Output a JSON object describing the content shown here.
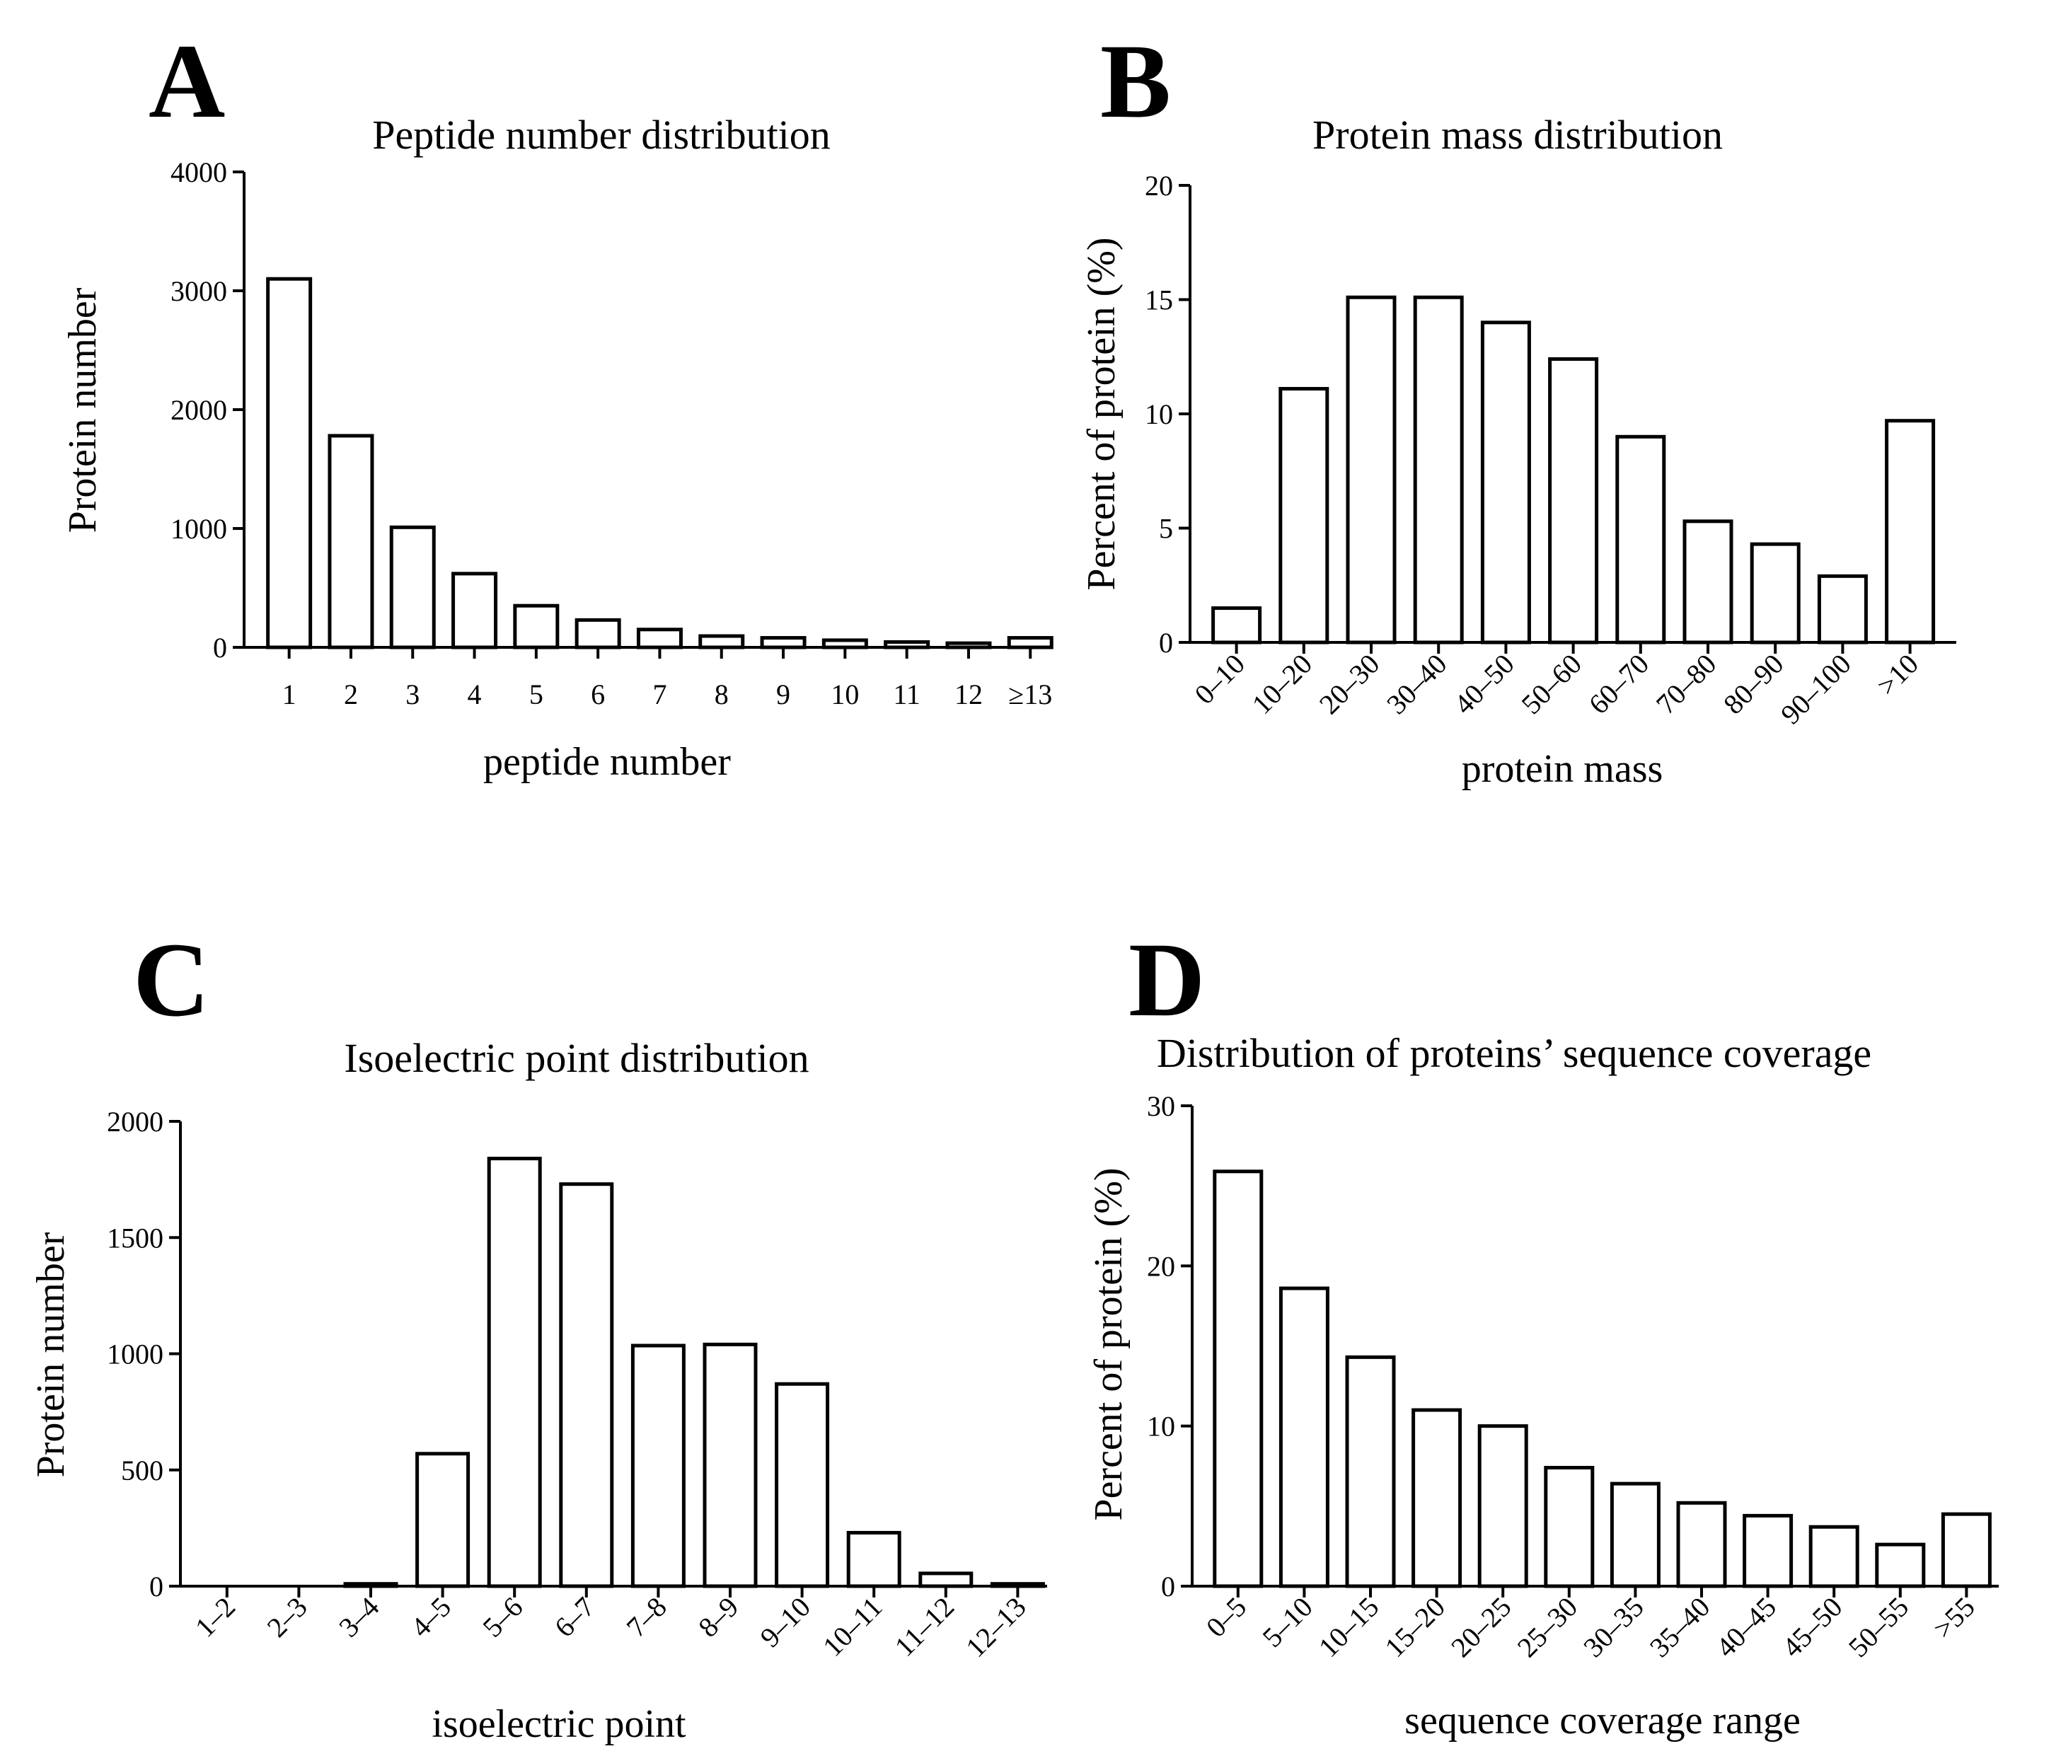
{
  "panels": [
    {
      "letter": "A",
      "chart_data": {
        "type": "bar",
        "title": "Peptide number distribution",
        "xlabel": "peptide number",
        "ylabel": "Protein number",
        "categories": [
          "1",
          "2",
          "3",
          "4",
          "5",
          "6",
          "7",
          "8",
          "9",
          "10",
          "11",
          "12",
          "≥13"
        ],
        "values": [
          3100,
          1780,
          1010,
          620,
          350,
          230,
          150,
          95,
          80,
          60,
          45,
          35,
          80
        ],
        "ylim": [
          0,
          4000
        ],
        "yticks": [
          0,
          1000,
          2000,
          3000,
          4000
        ],
        "rotate_labels": false,
        "grid": false
      }
    },
    {
      "letter": "B",
      "chart_data": {
        "type": "bar",
        "title": "Protein mass distribution",
        "xlabel": "protein mass",
        "ylabel": "Percent of protein (%)",
        "categories": [
          "0–10",
          "10–20",
          "20–30",
          "30–40",
          "40–50",
          "50–60",
          "60–70",
          "70–80",
          "80–90",
          "90–100",
          ">10"
        ],
        "values": [
          1.5,
          11.1,
          15.1,
          15.1,
          14.0,
          12.4,
          9.0,
          5.3,
          4.3,
          2.9,
          9.7
        ],
        "ylim": [
          0,
          20
        ],
        "yticks": [
          0,
          5,
          10,
          15,
          20
        ],
        "rotate_labels": true,
        "grid": false
      }
    },
    {
      "letter": "C",
      "chart_data": {
        "type": "bar",
        "title": "Isoelectric point distribution",
        "xlabel": "isoelectric point",
        "ylabel": "Protein number",
        "categories": [
          "1–2",
          "2–3",
          "3–4",
          "4–5",
          "5–6",
          "6–7",
          "7–8",
          "8–9",
          "9–10",
          "10–11",
          "11–12",
          "12–13"
        ],
        "values": [
          0,
          0,
          10,
          570,
          1840,
          1730,
          1035,
          1040,
          870,
          230,
          55,
          10
        ],
        "ylim": [
          0,
          2000
        ],
        "yticks": [
          0,
          500,
          1000,
          1500,
          2000
        ],
        "rotate_labels": true,
        "grid": false
      }
    },
    {
      "letter": "D",
      "chart_data": {
        "type": "bar",
        "title": "Distribution of proteins’ sequence coverage",
        "xlabel": "sequence coverage range",
        "ylabel": "Percent of protein (%)",
        "categories": [
          "0–5",
          "5–10",
          "10–15",
          "15–20",
          "20–25",
          "25–30",
          "30–35",
          "35–40",
          "40–45",
          "45–50",
          "50–55",
          ">55"
        ],
        "values": [
          25.9,
          18.6,
          14.3,
          11.0,
          10.0,
          7.4,
          6.4,
          5.2,
          4.4,
          3.7,
          2.6,
          4.5
        ],
        "ylim": [
          0,
          30
        ],
        "yticks": [
          0,
          10,
          20,
          30
        ],
        "rotate_labels": true,
        "grid": false
      }
    }
  ]
}
